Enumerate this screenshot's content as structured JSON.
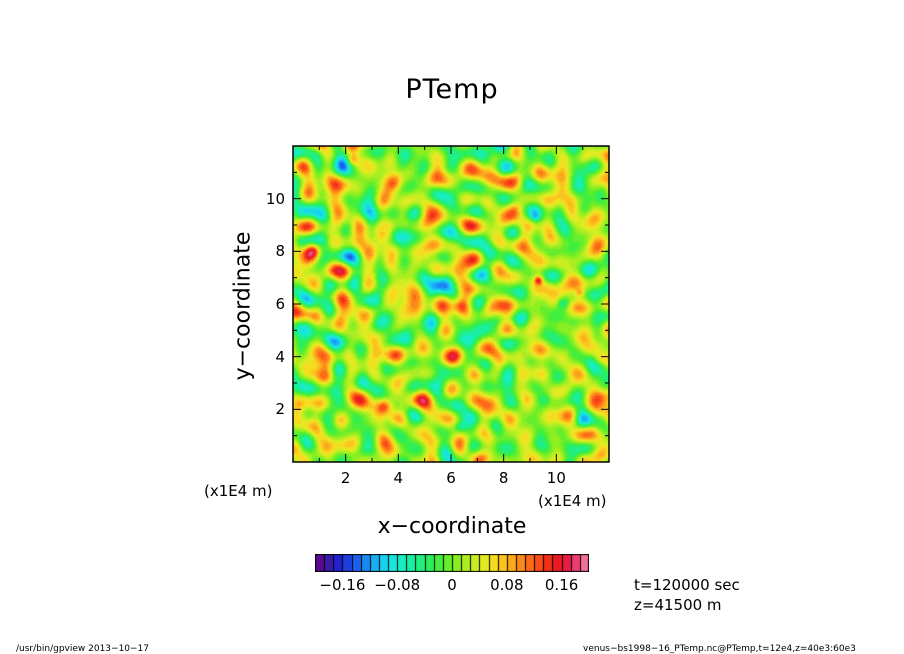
{
  "title": "PTemp",
  "chart_data": {
    "type": "heatmap",
    "title": "PTemp",
    "xlabel": "x−coordinate",
    "ylabel": "y−coordinate",
    "x_unit": "(x1E4 m)",
    "y_unit": "(x1E4 m)",
    "xlim": [
      0,
      12
    ],
    "ylim": [
      0,
      12
    ],
    "x_ticks": [
      2,
      4,
      6,
      8,
      10
    ],
    "y_ticks": [
      2,
      4,
      6,
      8,
      10
    ],
    "colorbar": {
      "range": [
        -0.2,
        0.2
      ],
      "levels": 40,
      "ticks": [
        -0.16,
        -0.08,
        0,
        0.08,
        0.16
      ],
      "tick_labels": [
        "−0.16",
        "−0.08",
        "0",
        "0.08",
        "0.16"
      ],
      "colors": [
        "#5a0a8c",
        "#3a1aa8",
        "#2222cc",
        "#1c3ee0",
        "#1a62ee",
        "#1a88f2",
        "#18aef2",
        "#18d0f0",
        "#18e4dc",
        "#18eec0",
        "#1aeea0",
        "#22ee80",
        "#2cee5c",
        "#44ee3c",
        "#66ee2c",
        "#8aee22",
        "#aaee22",
        "#c8ee22",
        "#e2ea22",
        "#f6dc20",
        "#fac41e",
        "#fca81c",
        "#fc8a1a",
        "#fc6a18",
        "#fa4c18",
        "#f23018",
        "#e81c20",
        "#e81c40",
        "#ec3c70",
        "#f07098"
      ]
    },
    "data_description": "potential temperature perturbation field, values mostly near 0 with small-scale fluctuations"
  },
  "annotations": {
    "time": "t=120000 sec",
    "z": "z=41500 m"
  },
  "footer": {
    "left": "/usr/bin/gpview   2013−10−17",
    "right": "venus−bs1998−16_PTemp.nc@PTemp,t=12e4,z=40e3:60e3"
  }
}
